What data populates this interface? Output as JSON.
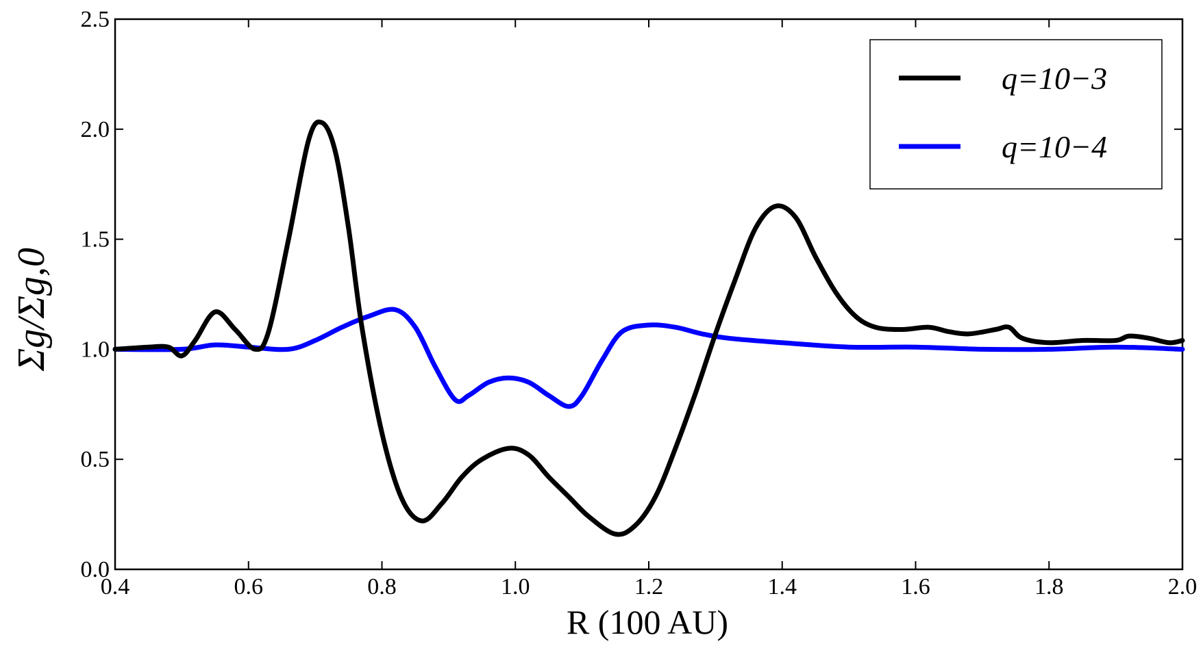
{
  "chart_data": {
    "type": "line",
    "xlabel": "R (100 AU)",
    "ylabel": "Σg/Σg,0",
    "xlim": [
      0.4,
      2.0
    ],
    "ylim": [
      0.0,
      2.5
    ],
    "xticks": [
      "0.4",
      "0.6",
      "0.8",
      "1.0",
      "1.2",
      "1.4",
      "1.6",
      "1.8",
      "2.0"
    ],
    "yticks": [
      "0.0",
      "0.5",
      "1.0",
      "1.5",
      "2.0",
      "2.5"
    ],
    "grid": false,
    "legend_position": "top-right",
    "series": [
      {
        "name": "q=10−3",
        "color": "#000000",
        "x": [
          0.4,
          0.45,
          0.48,
          0.5,
          0.52,
          0.55,
          0.58,
          0.61,
          0.63,
          0.66,
          0.69,
          0.71,
          0.73,
          0.75,
          0.77,
          0.8,
          0.83,
          0.86,
          0.89,
          0.92,
          0.95,
          0.99,
          1.02,
          1.05,
          1.08,
          1.11,
          1.15,
          1.18,
          1.21,
          1.24,
          1.27,
          1.3,
          1.33,
          1.36,
          1.39,
          1.42,
          1.45,
          1.48,
          1.51,
          1.54,
          1.58,
          1.62,
          1.65,
          1.68,
          1.72,
          1.74,
          1.76,
          1.8,
          1.85,
          1.9,
          1.92,
          1.95,
          1.98,
          2.0
        ],
        "y": [
          1.0,
          1.01,
          1.01,
          0.97,
          1.04,
          1.17,
          1.09,
          1.0,
          1.08,
          1.5,
          1.95,
          2.03,
          1.9,
          1.55,
          1.1,
          0.62,
          0.32,
          0.22,
          0.3,
          0.42,
          0.5,
          0.55,
          0.52,
          0.42,
          0.33,
          0.24,
          0.16,
          0.2,
          0.33,
          0.55,
          0.8,
          1.07,
          1.32,
          1.55,
          1.65,
          1.6,
          1.42,
          1.26,
          1.15,
          1.1,
          1.09,
          1.1,
          1.08,
          1.07,
          1.09,
          1.1,
          1.05,
          1.03,
          1.04,
          1.04,
          1.06,
          1.05,
          1.03,
          1.04
        ]
      },
      {
        "name": "q=10−4",
        "color": "#0000ff",
        "x": [
          0.4,
          0.5,
          0.55,
          0.6,
          0.66,
          0.7,
          0.74,
          0.78,
          0.82,
          0.85,
          0.88,
          0.91,
          0.93,
          0.96,
          0.99,
          1.02,
          1.05,
          1.08,
          1.1,
          1.13,
          1.16,
          1.2,
          1.24,
          1.28,
          1.32,
          1.4,
          1.5,
          1.6,
          1.7,
          1.8,
          1.9,
          2.0
        ],
        "y": [
          1.0,
          1.0,
          1.02,
          1.01,
          1.0,
          1.04,
          1.1,
          1.15,
          1.18,
          1.1,
          0.92,
          0.77,
          0.79,
          0.85,
          0.87,
          0.85,
          0.79,
          0.74,
          0.79,
          0.95,
          1.08,
          1.11,
          1.1,
          1.07,
          1.05,
          1.03,
          1.01,
          1.01,
          1.0,
          1.0,
          1.01,
          1.0
        ]
      }
    ]
  }
}
